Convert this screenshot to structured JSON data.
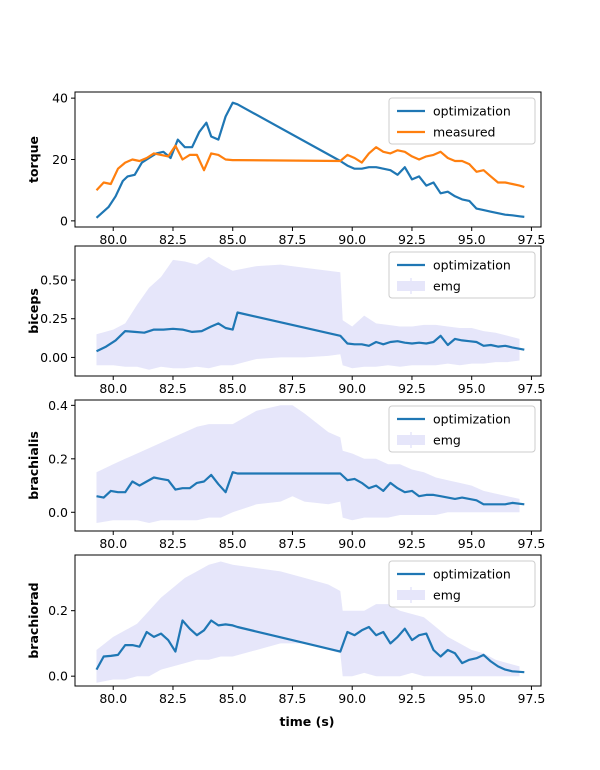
{
  "chart_data": {
    "type": "line",
    "xlabel": "time (s)",
    "xlim": [
      78.4,
      97.9
    ],
    "xticks": [
      80.0,
      82.5,
      85.0,
      87.5,
      90.0,
      92.5,
      95.0,
      97.5
    ],
    "xtick_labels": [
      "80.0",
      "82.5",
      "85.0",
      "87.5",
      "90.0",
      "92.5",
      "95.0",
      "97.5"
    ],
    "colors": {
      "optimization": "#1f77b4",
      "measured": "#ff7f0e",
      "emg_fill": "#e6e6fa"
    },
    "panels": [
      {
        "ylabel": "torque",
        "ylim": [
          -2,
          42
        ],
        "yticks": [
          0,
          20,
          40
        ],
        "ytick_labels": [
          "0",
          "20",
          "40"
        ],
        "legend_position": "upper right",
        "legend": [
          "optimization",
          "measured"
        ],
        "series": [
          {
            "name": "optimization",
            "x": [
              79.3,
              79.8,
              80.1,
              80.4,
              80.6,
              80.9,
              81.2,
              81.5,
              81.8,
              82.1,
              82.4,
              82.7,
              83.0,
              83.3,
              83.6,
              83.9,
              84.1,
              84.4,
              84.7,
              85.0,
              85.2,
              89.5,
              89.8,
              90.1,
              90.4,
              90.7,
              91.0,
              91.3,
              91.6,
              91.9,
              92.2,
              92.5,
              92.8,
              93.1,
              93.4,
              93.7,
              94.0,
              94.3,
              94.6,
              94.9,
              95.2,
              95.5,
              95.8,
              96.1,
              96.4,
              96.7,
              97.0,
              97.2
            ],
            "y": [
              1.0,
              4.5,
              8.0,
              13.0,
              14.5,
              15.0,
              19.0,
              20.5,
              22.0,
              22.5,
              20.5,
              26.5,
              24.0,
              24.0,
              29.0,
              32.0,
              27.5,
              26.5,
              34.0,
              38.5,
              38.0,
              19.5,
              18.0,
              17.0,
              17.0,
              17.5,
              17.5,
              17.0,
              16.5,
              15.0,
              17.5,
              13.5,
              14.5,
              11.5,
              12.5,
              9.0,
              9.5,
              8.0,
              7.0,
              6.5,
              4.0,
              3.5,
              3.0,
              2.5,
              2.0,
              1.8,
              1.5,
              1.3
            ]
          },
          {
            "name": "measured",
            "x": [
              79.3,
              79.6,
              79.9,
              80.2,
              80.5,
              80.8,
              81.1,
              81.4,
              81.7,
              82.0,
              82.3,
              82.6,
              82.9,
              83.2,
              83.5,
              83.8,
              84.1,
              84.4,
              84.7,
              85.0,
              85.2,
              89.5,
              89.8,
              90.1,
              90.4,
              90.7,
              91.0,
              91.3,
              91.6,
              91.9,
              92.2,
              92.5,
              92.8,
              93.1,
              93.4,
              93.7,
              94.0,
              94.3,
              94.6,
              94.9,
              95.2,
              95.5,
              95.8,
              96.1,
              96.4,
              96.7,
              97.0,
              97.2
            ],
            "y": [
              10.0,
              12.5,
              12.0,
              17.0,
              19.0,
              20.0,
              19.5,
              20.5,
              22.0,
              21.5,
              21.0,
              24.5,
              20.0,
              21.5,
              21.5,
              16.5,
              22.0,
              21.5,
              20.0,
              19.8,
              19.8,
              19.5,
              21.5,
              20.5,
              19.0,
              22.0,
              24.0,
              22.5,
              22.0,
              23.0,
              22.5,
              21.0,
              20.0,
              21.0,
              21.5,
              22.5,
              20.5,
              19.5,
              19.5,
              18.5,
              16.0,
              16.5,
              14.5,
              12.5,
              12.5,
              12.0,
              11.5,
              11.0
            ]
          }
        ]
      },
      {
        "ylabel": "biceps",
        "ylim": [
          -0.12,
          0.72
        ],
        "yticks": [
          0.0,
          0.25,
          0.5
        ],
        "ytick_labels": [
          "0.00",
          "0.25",
          "0.50"
        ],
        "legend_position": "upper right",
        "legend": [
          "optimization",
          "emg"
        ],
        "series": [
          {
            "name": "optimization",
            "x": [
              79.3,
              79.7,
              80.1,
              80.5,
              80.9,
              81.3,
              81.7,
              82.1,
              82.5,
              82.9,
              83.3,
              83.7,
              84.1,
              84.4,
              84.7,
              85.0,
              85.2,
              89.5,
              89.8,
              90.1,
              90.4,
              90.7,
              91.0,
              91.3,
              91.6,
              91.9,
              92.2,
              92.5,
              92.8,
              93.1,
              93.4,
              93.7,
              94.0,
              94.3,
              94.6,
              94.9,
              95.2,
              95.5,
              95.8,
              96.1,
              96.4,
              96.7,
              97.2
            ],
            "y": [
              0.04,
              0.07,
              0.11,
              0.17,
              0.165,
              0.16,
              0.18,
              0.18,
              0.185,
              0.18,
              0.165,
              0.17,
              0.2,
              0.22,
              0.19,
              0.18,
              0.29,
              0.14,
              0.09,
              0.085,
              0.085,
              0.075,
              0.1,
              0.085,
              0.1,
              0.105,
              0.095,
              0.09,
              0.095,
              0.09,
              0.1,
              0.14,
              0.08,
              0.12,
              0.11,
              0.105,
              0.1,
              0.075,
              0.08,
              0.07,
              0.075,
              0.065,
              0.05
            ]
          },
          {
            "name": "emg",
            "x": [
              79.3,
              80.0,
              80.5,
              81.0,
              81.5,
              82.0,
              82.5,
              83.0,
              83.5,
              84.0,
              84.5,
              85.0,
              86.0,
              87.0,
              88.0,
              89.0,
              89.5,
              89.6,
              90.0,
              90.5,
              91.0,
              91.5,
              92.0,
              92.5,
              93.0,
              93.5,
              94.0,
              94.5,
              95.0,
              95.5,
              96.0,
              96.5,
              97.0
            ],
            "lower": [
              -0.05,
              -0.05,
              -0.06,
              -0.06,
              -0.08,
              -0.06,
              -0.07,
              -0.07,
              -0.06,
              -0.07,
              -0.05,
              -0.05,
              -0.01,
              0.0,
              0.0,
              0.01,
              0.02,
              -0.05,
              -0.07,
              -0.06,
              -0.06,
              -0.05,
              -0.06,
              -0.05,
              -0.05,
              -0.05,
              -0.04,
              -0.05,
              -0.04,
              -0.04,
              -0.03,
              -0.03,
              -0.02
            ],
            "upper": [
              0.15,
              0.18,
              0.22,
              0.34,
              0.45,
              0.52,
              0.63,
              0.62,
              0.6,
              0.65,
              0.6,
              0.56,
              0.59,
              0.6,
              0.58,
              0.56,
              0.55,
              0.24,
              0.2,
              0.27,
              0.22,
              0.21,
              0.2,
              0.2,
              0.21,
              0.21,
              0.2,
              0.19,
              0.19,
              0.17,
              0.16,
              0.14,
              0.12
            ]
          }
        ]
      },
      {
        "ylabel": "brachialis",
        "ylim": [
          -0.07,
          0.42
        ],
        "yticks": [
          0.0,
          0.2,
          0.4
        ],
        "ytick_labels": [
          "0.0",
          "0.2",
          "0.4"
        ],
        "legend_position": "upper right",
        "legend": [
          "optimization",
          "emg"
        ],
        "series": [
          {
            "name": "optimization",
            "x": [
              79.3,
              79.6,
              79.9,
              80.2,
              80.5,
              80.8,
              81.1,
              81.4,
              81.7,
              82.0,
              82.3,
              82.6,
              82.9,
              83.2,
              83.5,
              83.8,
              84.1,
              84.4,
              84.7,
              85.0,
              85.2,
              89.5,
              89.8,
              90.1,
              90.4,
              90.7,
              91.0,
              91.3,
              91.6,
              91.9,
              92.2,
              92.5,
              92.8,
              93.1,
              93.4,
              93.7,
              94.0,
              94.3,
              94.6,
              94.9,
              95.2,
              95.5,
              95.8,
              96.1,
              96.4,
              96.7,
              97.2
            ],
            "y": [
              0.06,
              0.055,
              0.08,
              0.075,
              0.075,
              0.115,
              0.1,
              0.115,
              0.13,
              0.125,
              0.12,
              0.085,
              0.09,
              0.09,
              0.11,
              0.115,
              0.14,
              0.105,
              0.075,
              0.15,
              0.145,
              0.145,
              0.12,
              0.125,
              0.11,
              0.09,
              0.1,
              0.08,
              0.11,
              0.09,
              0.075,
              0.08,
              0.06,
              0.065,
              0.065,
              0.06,
              0.055,
              0.05,
              0.055,
              0.05,
              0.045,
              0.03,
              0.03,
              0.03,
              0.03,
              0.035,
              0.03
            ]
          },
          {
            "name": "emg",
            "x": [
              79.3,
              80.0,
              80.5,
              81.0,
              81.5,
              82.0,
              82.5,
              83.0,
              83.5,
              84.0,
              84.5,
              85.0,
              86.0,
              87.0,
              87.5,
              88.0,
              89.0,
              89.5,
              89.6,
              90.0,
              90.5,
              91.0,
              91.5,
              92.0,
              92.5,
              93.0,
              93.5,
              94.0,
              94.5,
              95.0,
              95.5,
              96.0,
              96.5,
              97.0
            ],
            "lower": [
              -0.04,
              -0.03,
              -0.03,
              -0.03,
              -0.04,
              -0.03,
              -0.03,
              -0.03,
              -0.03,
              -0.02,
              -0.02,
              0.0,
              0.03,
              0.04,
              0.06,
              0.04,
              0.03,
              0.04,
              -0.02,
              -0.03,
              -0.02,
              -0.02,
              -0.02,
              -0.01,
              -0.01,
              -0.01,
              -0.01,
              0.0,
              0.0,
              0.0,
              0.0,
              0.0,
              0.0,
              0.0
            ],
            "upper": [
              0.15,
              0.18,
              0.2,
              0.22,
              0.24,
              0.26,
              0.28,
              0.3,
              0.32,
              0.33,
              0.33,
              0.33,
              0.38,
              0.4,
              0.4,
              0.37,
              0.3,
              0.28,
              0.23,
              0.22,
              0.2,
              0.2,
              0.18,
              0.18,
              0.16,
              0.15,
              0.13,
              0.12,
              0.11,
              0.1,
              0.08,
              0.07,
              0.06,
              0.05
            ]
          }
        ]
      },
      {
        "ylabel": "brachiorad",
        "ylim": [
          -0.03,
          0.37
        ],
        "yticks": [
          0.0,
          0.2
        ],
        "ytick_labels": [
          "0.0",
          "0.2"
        ],
        "legend_position": "upper right",
        "legend": [
          "optimization",
          "emg"
        ],
        "series": [
          {
            "name": "optimization",
            "x": [
              79.3,
              79.6,
              79.9,
              80.2,
              80.5,
              80.8,
              81.1,
              81.4,
              81.7,
              82.0,
              82.3,
              82.6,
              82.9,
              83.2,
              83.5,
              83.8,
              84.1,
              84.4,
              84.7,
              85.0,
              85.2,
              89.5,
              89.8,
              90.1,
              90.4,
              90.7,
              91.0,
              91.3,
              91.6,
              91.9,
              92.2,
              92.5,
              92.8,
              93.1,
              93.4,
              93.7,
              94.0,
              94.3,
              94.6,
              94.9,
              95.2,
              95.5,
              95.8,
              96.1,
              96.4,
              96.7,
              97.2
            ],
            "y": [
              0.02,
              0.06,
              0.062,
              0.065,
              0.095,
              0.095,
              0.09,
              0.135,
              0.12,
              0.13,
              0.11,
              0.075,
              0.17,
              0.145,
              0.125,
              0.14,
              0.17,
              0.155,
              0.158,
              0.155,
              0.15,
              0.075,
              0.135,
              0.125,
              0.14,
              0.15,
              0.125,
              0.135,
              0.1,
              0.12,
              0.145,
              0.11,
              0.125,
              0.13,
              0.08,
              0.06,
              0.08,
              0.07,
              0.04,
              0.05,
              0.055,
              0.065,
              0.045,
              0.03,
              0.02,
              0.015,
              0.012
            ]
          },
          {
            "name": "emg",
            "x": [
              79.3,
              80.0,
              80.5,
              81.0,
              81.5,
              82.0,
              82.5,
              83.0,
              83.5,
              84.0,
              84.5,
              85.0,
              86.0,
              87.0,
              88.0,
              89.0,
              89.5,
              89.6,
              90.0,
              90.5,
              91.0,
              91.5,
              92.0,
              92.5,
              93.0,
              93.5,
              94.0,
              94.5,
              95.0,
              95.5,
              96.0,
              96.5,
              97.0
            ],
            "lower": [
              -0.02,
              -0.01,
              -0.01,
              0.0,
              0.0,
              0.02,
              0.03,
              0.04,
              0.05,
              0.05,
              0.06,
              0.06,
              0.08,
              0.1,
              0.1,
              0.08,
              0.07,
              0.0,
              0.0,
              0.01,
              0.0,
              0.0,
              0.0,
              0.01,
              0.0,
              0.0,
              0.0,
              0.0,
              0.0,
              0.0,
              0.0,
              0.0,
              0.0
            ],
            "upper": [
              0.08,
              0.12,
              0.14,
              0.16,
              0.2,
              0.24,
              0.27,
              0.3,
              0.32,
              0.34,
              0.35,
              0.34,
              0.33,
              0.32,
              0.3,
              0.28,
              0.26,
              0.2,
              0.2,
              0.2,
              0.22,
              0.22,
              0.2,
              0.19,
              0.18,
              0.15,
              0.12,
              0.1,
              0.08,
              0.07,
              0.05,
              0.04,
              0.03
            ]
          }
        ]
      }
    ]
  }
}
